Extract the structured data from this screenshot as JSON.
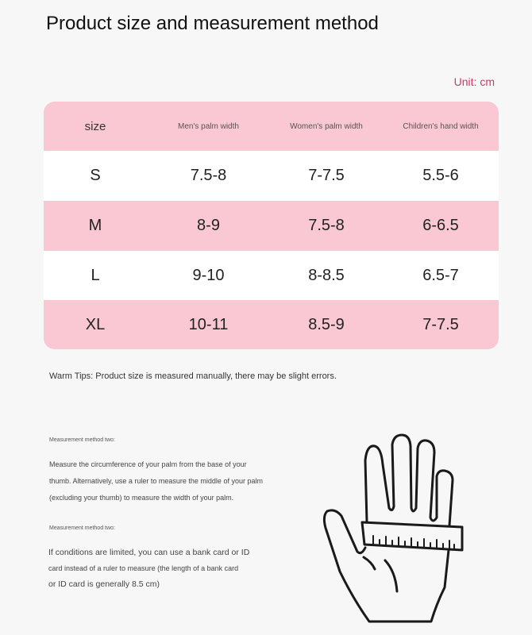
{
  "title": "Product size and measurement method",
  "unit": "Unit: cm",
  "table": {
    "headers": [
      "size",
      "Men's palm width",
      "Women's palm width",
      "Children's hand width"
    ],
    "rows": [
      [
        "S",
        "7.5-8",
        "7-7.5",
        "5.5-6"
      ],
      [
        "M",
        "8-9",
        "7.5-8",
        "6-6.5"
      ],
      [
        "L",
        "9-10",
        "8-8.5",
        "6.5-7"
      ],
      [
        "XL",
        "10-11",
        "8.5-9",
        "7-7.5"
      ]
    ]
  },
  "tips": "Warm Tips: Product size is measured manually, there may be slight errors.",
  "methods": [
    {
      "label": "Measurement method two:",
      "lines": [
        "Measure the circumference of your palm from the base of your",
        "thumb. Alternatively, use a ruler to measure the middle of your palm",
        "(excluding your thumb) to measure the width of your palm."
      ]
    },
    {
      "label": "Measurement method two:",
      "lines": [
        "If conditions are limited, you can use a bank card or ID",
        "card instead of a ruler to measure (the length of a bank card",
        "or ID card is generally 8.5 cm)"
      ]
    }
  ],
  "colors": {
    "pink": "#f9c8d3",
    "accent": "#d8336a",
    "background": "#f7f7f7"
  },
  "illustration": "hand-with-ruler-icon"
}
